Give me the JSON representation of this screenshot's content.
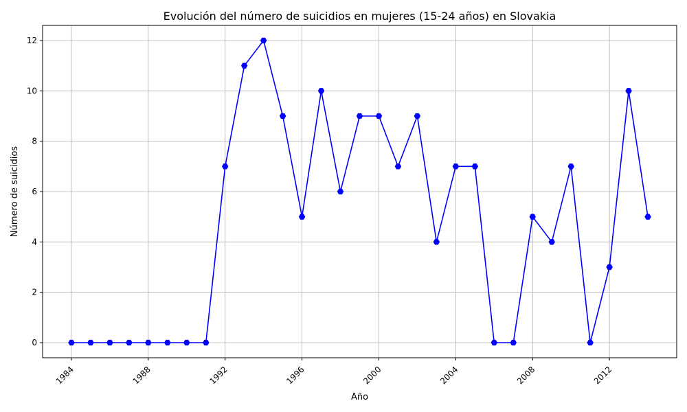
{
  "chart_data": {
    "type": "line",
    "title": "Evolución del número de suicidios en mujeres (15-24 años) en Slovakia",
    "xlabel": "Año",
    "ylabel": "Número de suicidios",
    "x": [
      1984,
      1985,
      1986,
      1987,
      1988,
      1989,
      1990,
      1991,
      1992,
      1993,
      1994,
      1995,
      1996,
      1997,
      1998,
      1999,
      2000,
      2001,
      2002,
      2003,
      2004,
      2005,
      2006,
      2007,
      2008,
      2009,
      2010,
      2011,
      2012,
      2013,
      2014
    ],
    "series": [
      {
        "values": [
          0,
          0,
          0,
          0,
          0,
          0,
          0,
          0,
          7,
          11,
          12,
          9,
          5,
          10,
          6,
          9,
          9,
          7,
          9,
          4,
          7,
          7,
          0,
          0,
          5,
          4,
          7,
          0,
          3,
          10,
          5
        ],
        "color": "#0000ff",
        "marker": "hexagon"
      }
    ],
    "xticks": [
      1984,
      1988,
      1992,
      1996,
      2000,
      2004,
      2008,
      2012
    ],
    "yticks": [
      0,
      2,
      4,
      6,
      8,
      10,
      12
    ],
    "xlim": [
      1982.5,
      2015.5
    ],
    "ylim": [
      -0.6,
      12.6
    ],
    "grid": true,
    "xtick_rotation": 45
  }
}
